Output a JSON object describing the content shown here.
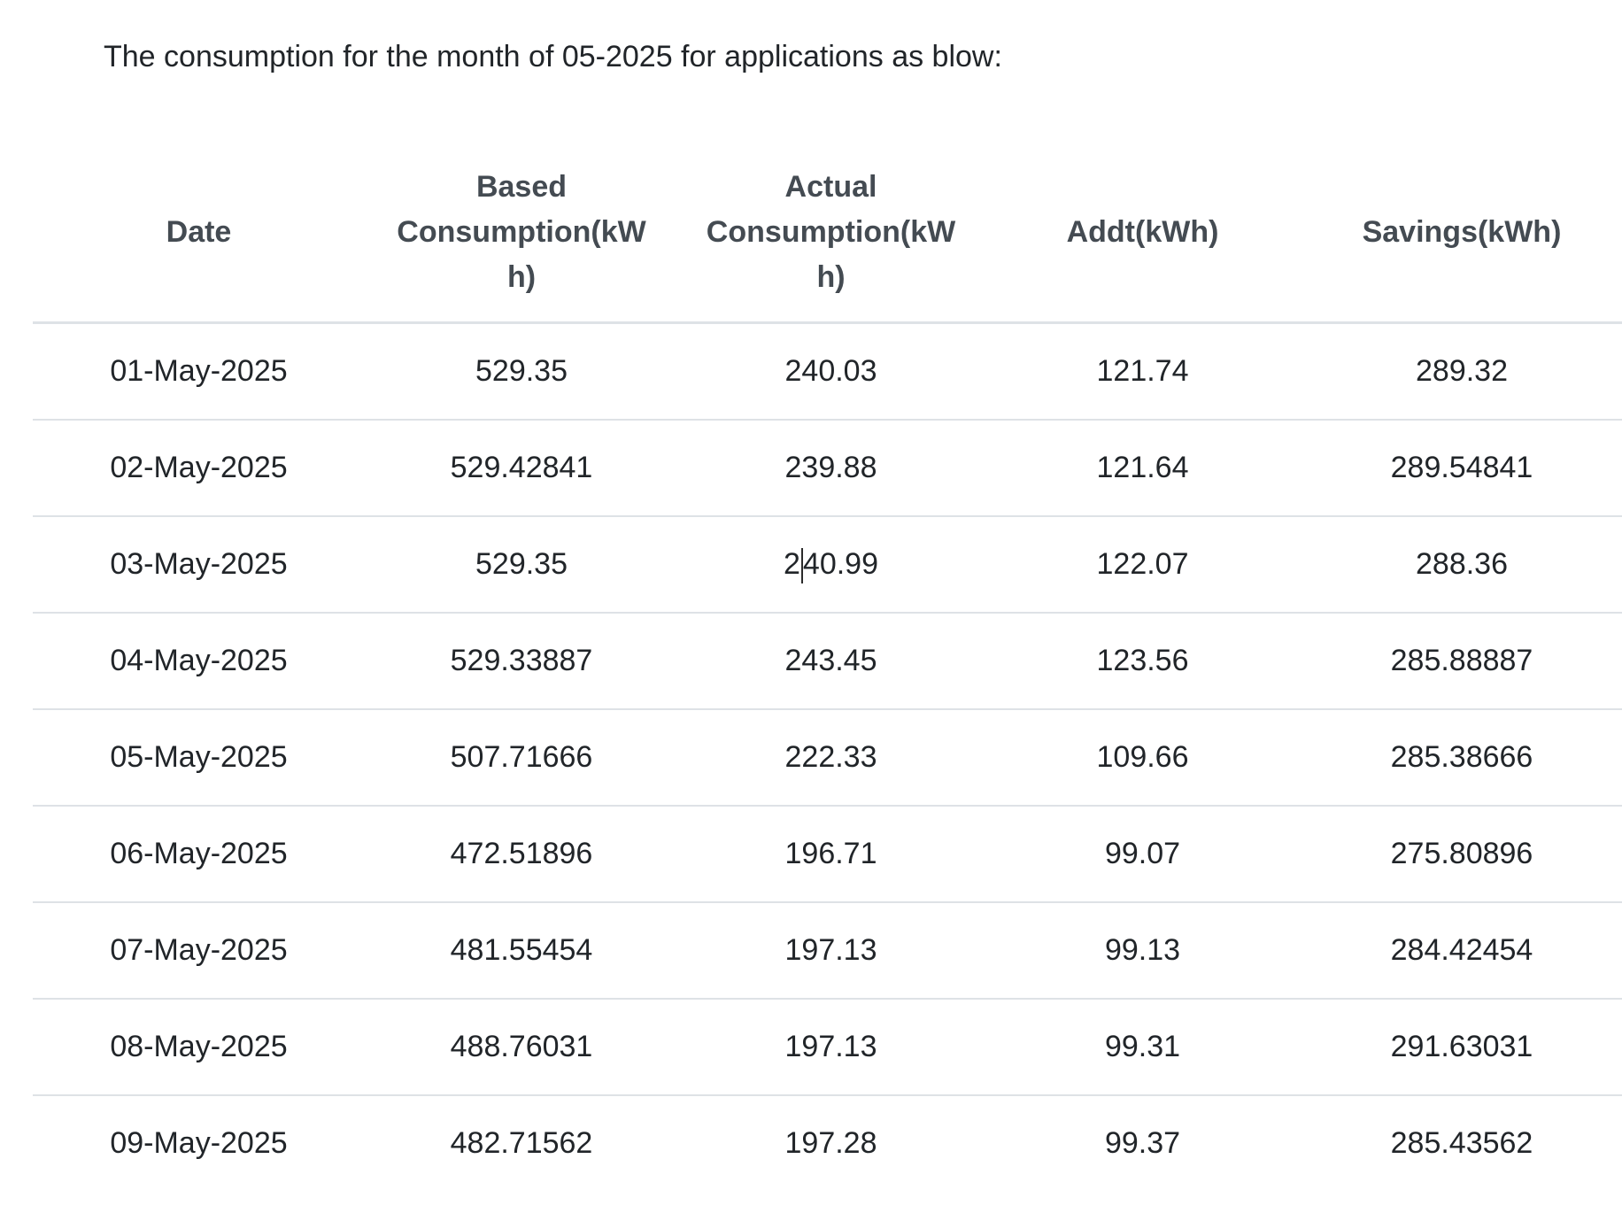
{
  "title": "The consumption for the month of 05-2025 for applications as blow:",
  "table": {
    "columns": [
      "Date",
      "Based Consumption(kWh)",
      "Actual Consumption(kWh)",
      "Addt(kWh)",
      "Savings(kWh)"
    ],
    "rows": [
      [
        "01-May-2025",
        "529.35",
        "240.03",
        "121.74",
        "289.32"
      ],
      [
        "02-May-2025",
        "529.42841",
        "239.88",
        "121.64",
        "289.54841"
      ],
      [
        "03-May-2025",
        "529.35",
        "240.99",
        "122.07",
        "288.36"
      ],
      [
        "04-May-2025",
        "529.33887",
        "243.45",
        "123.56",
        "285.88887"
      ],
      [
        "05-May-2025",
        "507.71666",
        "222.33",
        "109.66",
        "285.38666"
      ],
      [
        "06-May-2025",
        "472.51896",
        "196.71",
        "99.07",
        "275.80896"
      ],
      [
        "07-May-2025",
        "481.55454",
        "197.13",
        "99.13",
        "284.42454"
      ],
      [
        "08-May-2025",
        "488.76031",
        "197.13",
        "99.31",
        "291.63031"
      ],
      [
        "09-May-2025",
        "482.71562",
        "197.28",
        "99.37",
        "285.43562"
      ]
    ],
    "edit_caret": {
      "row": 2,
      "col": 2,
      "before": "2",
      "after": "40.99"
    }
  },
  "colors": {
    "header_text": "#444b52",
    "body_text": "#212529",
    "border": "#dee2e6",
    "background": "#ffffff"
  }
}
